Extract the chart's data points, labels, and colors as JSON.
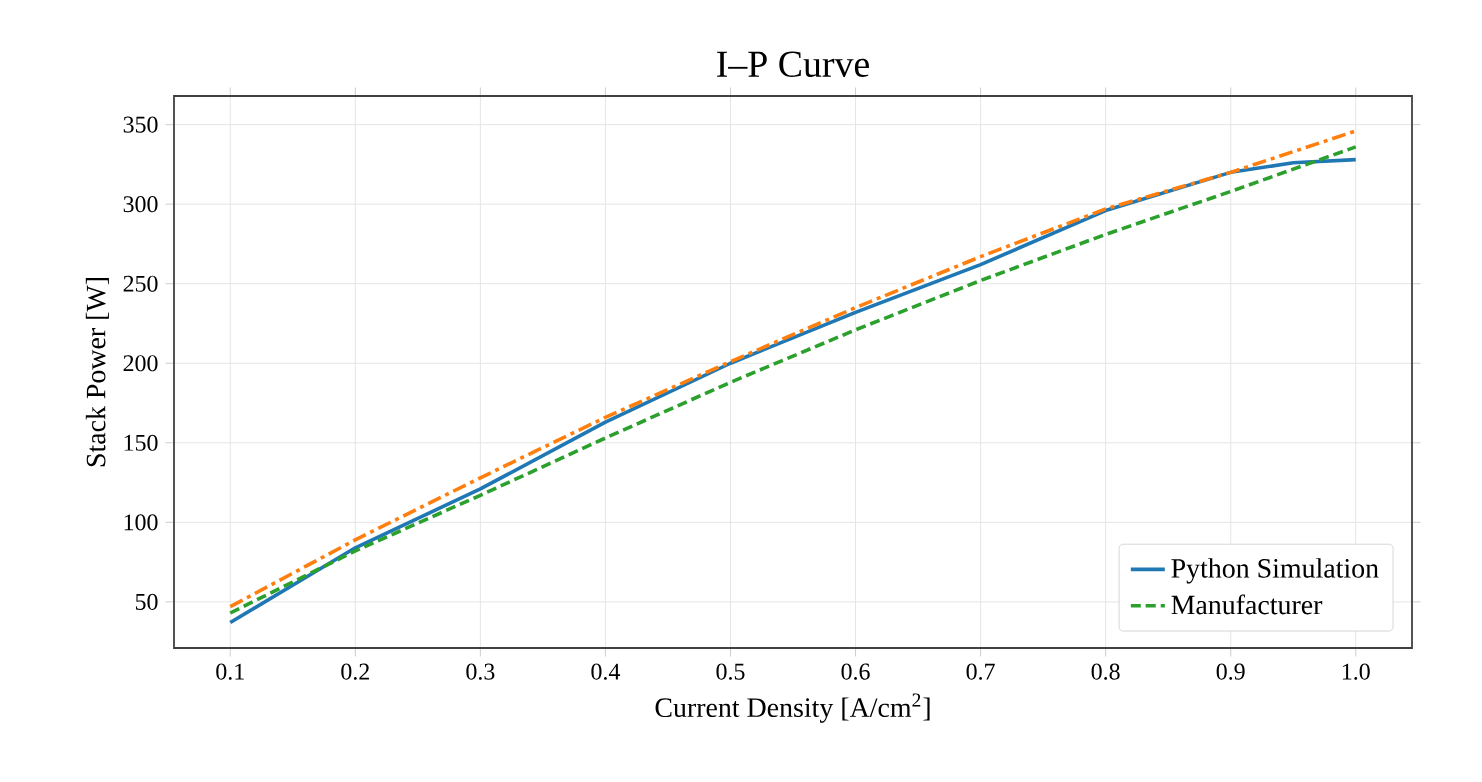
{
  "chart_data": {
    "type": "line",
    "title": "I–P Curve",
    "xlabel": "Current Density [A/cm$^{2}$]",
    "ylabel": "Stack Power [W]",
    "xlim": [
      0.055,
      1.045
    ],
    "ylim": [
      21,
      368
    ],
    "xticks": [
      {
        "value": 0.1,
        "label": "0.1"
      },
      {
        "value": 0.2,
        "label": "0.2"
      },
      {
        "value": 0.3,
        "label": "0.3"
      },
      {
        "value": 0.4,
        "label": "0.4"
      },
      {
        "value": 0.5,
        "label": "0.5"
      },
      {
        "value": 0.6,
        "label": "0.6"
      },
      {
        "value": 0.7,
        "label": "0.7"
      },
      {
        "value": 0.8,
        "label": "0.8"
      },
      {
        "value": 0.9,
        "label": "0.9"
      },
      {
        "value": 1.0,
        "label": "1.0"
      }
    ],
    "yticks": [
      50,
      100,
      150,
      200,
      250,
      300,
      350
    ],
    "grid": true,
    "legend": "bottom right",
    "series": [
      {
        "name": "Python Simulation",
        "color": "#1f77b4",
        "line_style": "solid",
        "x": [
          0.1,
          0.2,
          0.3,
          0.4,
          0.5,
          0.6,
          0.7,
          0.8,
          0.9,
          0.95,
          1.0
        ],
        "values": [
          37,
          84,
          121,
          163,
          200,
          232,
          262,
          296,
          320,
          326,
          328
        ]
      },
      {
        "color": "#ff7f0e",
        "line_style": "dashdot",
        "x": [
          0.1,
          0.2,
          0.3,
          0.4,
          0.5,
          0.6,
          0.7,
          0.8,
          0.9,
          1.0
        ],
        "values": [
          47,
          89,
          128,
          166,
          201,
          235,
          267,
          297,
          320,
          346
        ]
      },
      {
        "name": "Manufacturer",
        "color": "#2ca02c",
        "line_style": "dashed",
        "x": [
          0.1,
          0.2,
          0.3,
          0.4,
          0.5,
          0.6,
          0.7,
          0.8,
          0.9,
          1.0
        ],
        "values": [
          43,
          82,
          117,
          153,
          188,
          221,
          252,
          281,
          308,
          336
        ]
      }
    ]
  }
}
